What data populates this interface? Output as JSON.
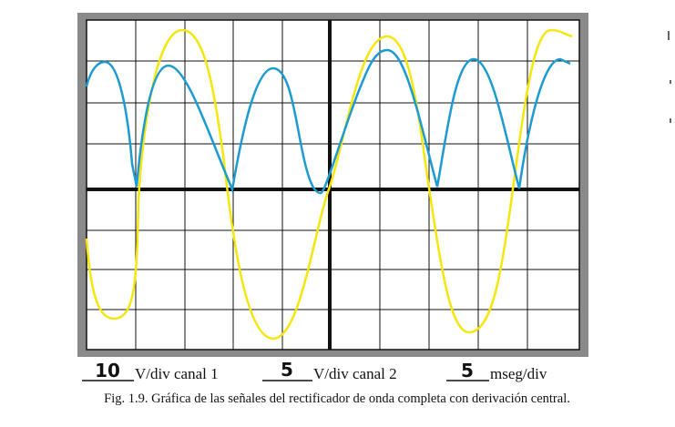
{
  "figure": {
    "scales": [
      {
        "value": "10",
        "unit": "V/div canal 1"
      },
      {
        "value": "5",
        "unit": "V/div canal 2"
      },
      {
        "value": "5",
        "unit": "mseg/div"
      }
    ],
    "caption": "Fig. 1.9. Gráfica de las señales del rectificador de onda completa con derivación central."
  }
}
